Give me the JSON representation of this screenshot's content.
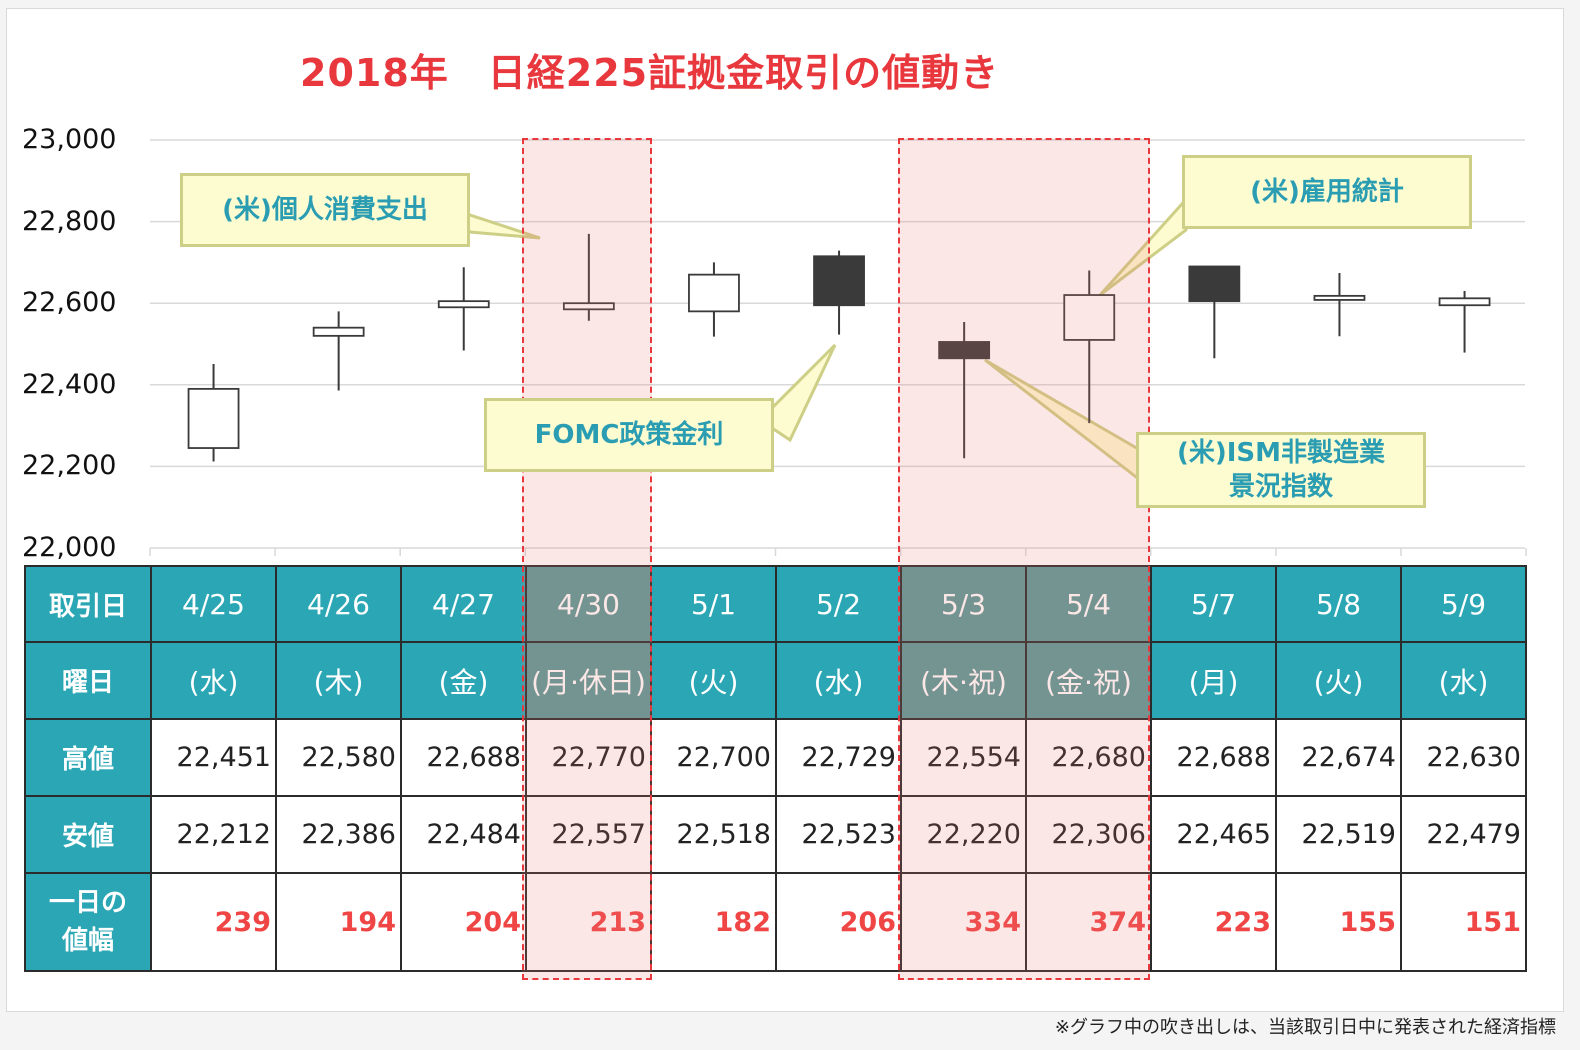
{
  "title": "2018年　日経225証拠金取引の値動き",
  "footnote": "※グラフ中の吹き出しは、当該取引日中に発表された経済指標",
  "colors": {
    "title": "#e8383d",
    "teal": "#2aa6b4",
    "teal_shaded": "#5a9a98",
    "range_text": "#f04545",
    "callout_bg": "#fdfbd0",
    "callout_border": "#cdcf86",
    "callout_text": "#2a9db3",
    "bear_candle": "#3a3a3a",
    "bull_candle": "#ffffff",
    "highlight": "#e8383d"
  },
  "table": {
    "row_headers": [
      "取引日",
      "曜日",
      "高値",
      "安値"
    ],
    "range_header_line1": "一日の",
    "range_header_line2": "値幅",
    "dates": [
      "4/25",
      "4/26",
      "4/27",
      "4/30",
      "5/1",
      "5/2",
      "5/3",
      "5/4",
      "5/7",
      "5/8",
      "5/9"
    ],
    "weekdays": [
      "(水)",
      "(木)",
      "(金)",
      "(月·休日)",
      "(火)",
      "(水)",
      "(木·祝)",
      "(金·祝)",
      "(月)",
      "(火)",
      "(水)"
    ],
    "highs": [
      "22,451",
      "22,580",
      "22,688",
      "22,770",
      "22,700",
      "22,729",
      "22,554",
      "22,680",
      "22,688",
      "22,674",
      "22,630"
    ],
    "lows": [
      "22,212",
      "22,386",
      "22,484",
      "22,557",
      "22,518",
      "22,523",
      "22,220",
      "22,306",
      "22,465",
      "22,519",
      "22,479"
    ],
    "ranges": [
      "239",
      "194",
      "204",
      "213",
      "182",
      "206",
      "334",
      "374",
      "223",
      "155",
      "151"
    ],
    "shaded_columns": [
      3,
      6,
      7
    ]
  },
  "callouts": {
    "personal_spending": "(米)個人消費支出",
    "fomc": "FOMC政策金利",
    "employment": "(米)雇用統計",
    "ism_line1": "(米)ISM非製造業",
    "ism_line2": "景況指数"
  },
  "chart_data": {
    "type": "candlestick",
    "title": "2018年　日経225証拠金取引の値動き",
    "categories": [
      "4/25",
      "4/26",
      "4/27",
      "4/30",
      "5/1",
      "5/2",
      "5/3",
      "5/4",
      "5/7",
      "5/8",
      "5/9"
    ],
    "open": [
      22245,
      22520,
      22590,
      22585,
      22580,
      22715,
      22505,
      22510,
      22690,
      22608,
      22595
    ],
    "high": [
      22451,
      22580,
      22688,
      22770,
      22700,
      22729,
      22554,
      22680,
      22688,
      22674,
      22630
    ],
    "low": [
      22212,
      22386,
      22484,
      22557,
      22518,
      22523,
      22220,
      22306,
      22465,
      22519,
      22479
    ],
    "close": [
      22390,
      22540,
      22605,
      22600,
      22670,
      22595,
      22465,
      22620,
      22605,
      22618,
      22612
    ],
    "ylim": [
      22000,
      23000
    ],
    "yticks": [
      "22,000",
      "22,200",
      "22,400",
      "22,600",
      "22,800",
      "23,000"
    ],
    "ytick_values": [
      22000,
      22200,
      22400,
      22600,
      22800,
      23000
    ],
    "grid": true,
    "highlighted": [
      "4/30",
      "5/3",
      "5/4"
    ]
  }
}
